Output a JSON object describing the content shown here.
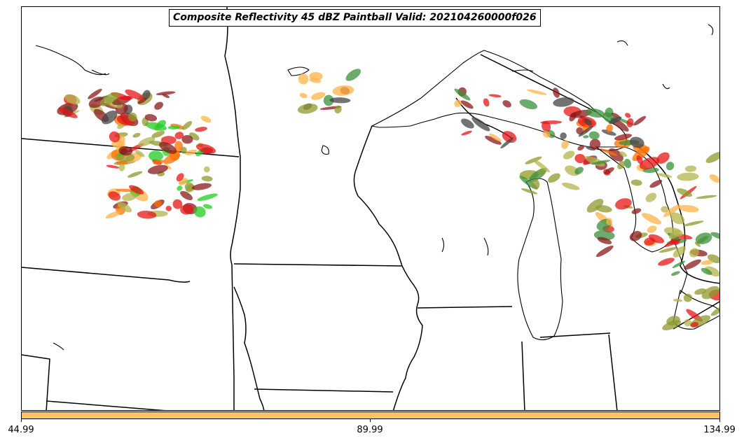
{
  "title": "Composite Reflectivity 45 dBZ Paintball Valid: 202104260000f026",
  "colorbar": {
    "color": "#ffc265",
    "ticks": [
      "44.99",
      "89.99",
      "134.99"
    ]
  },
  "paint_colors": {
    "red": "#e51616",
    "orange": "#ff6f00",
    "light_orange": "#ffb347",
    "green": "#22cc22",
    "dark_green": "#3a8f3a",
    "olive": "#8f9a2e",
    "khaki": "#b4b44c",
    "brown": "#8b1a1a",
    "gray": "#444444"
  }
}
